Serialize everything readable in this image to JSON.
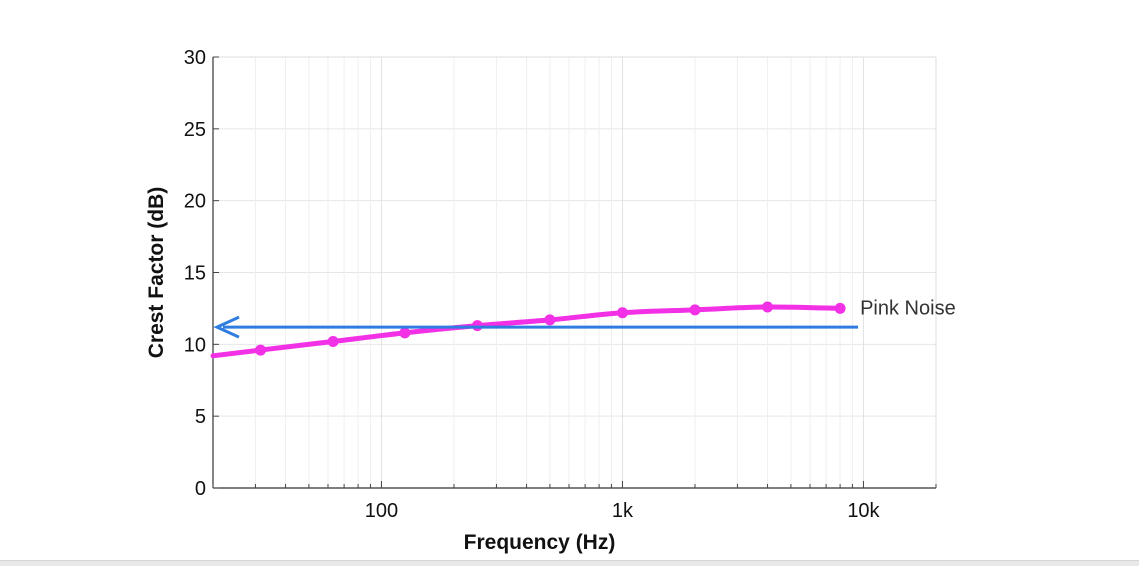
{
  "chart_data": {
    "type": "line",
    "xscale": "log",
    "xlim": [
      20,
      20000
    ],
    "ylim": [
      0,
      30
    ],
    "yticks": [
      0,
      5,
      10,
      15,
      20,
      25,
      30
    ],
    "ytick_labels": [
      "0",
      "5",
      "10",
      "15",
      "20",
      "25",
      "30"
    ],
    "xticks": [
      100,
      1000,
      10000
    ],
    "xtick_labels": [
      "100",
      "1k",
      "10k"
    ],
    "xlabel": "Frequency (Hz)",
    "ylabel": "Crest Factor (dB)",
    "grid": true,
    "series": [
      {
        "name": "Pink Noise",
        "color": "#f230e6",
        "x": [
          20,
          31.5,
          63,
          125,
          250,
          500,
          1000,
          2000,
          4000,
          8000
        ],
        "y": [
          9.2,
          9.6,
          10.2,
          10.8,
          11.3,
          11.7,
          12.2,
          12.4,
          12.6,
          12.5
        ]
      }
    ],
    "reference_line": {
      "y": 11.2,
      "x_end": 9500,
      "color": "#2f7de1",
      "arrow": "left"
    }
  }
}
